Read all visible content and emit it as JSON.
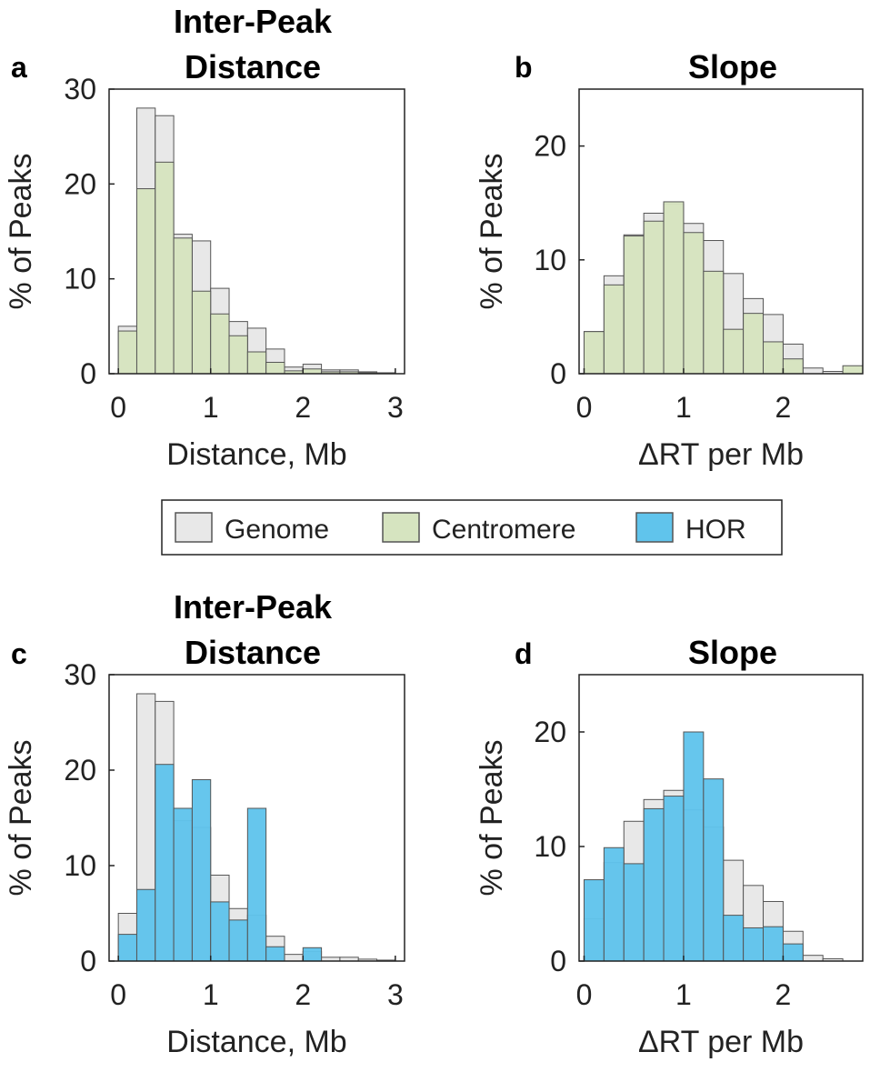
{
  "colors": {
    "genome": "#e8e8e8",
    "centromere": "#d6e4c0",
    "hor": "#60c4ec",
    "edge": "#555555",
    "axis": "#222222"
  },
  "legend": {
    "items": [
      {
        "key": "genome",
        "label": "Genome"
      },
      {
        "key": "centromere",
        "label": "Centromere"
      },
      {
        "key": "hor",
        "label": "HOR"
      }
    ]
  },
  "chart_data": [
    {
      "id": "a",
      "panel_label": "a",
      "type": "bar",
      "title": [
        "Inter-Peak",
        "Distance"
      ],
      "xlabel": "Distance, Mb",
      "ylabel": "% of Peaks",
      "xlim": [
        -0.1,
        3.1
      ],
      "ylim": [
        0,
        30
      ],
      "xticks": [
        0,
        1,
        2,
        3
      ],
      "yticks": [
        0,
        10,
        20,
        30
      ],
      "bin_width": 0.2,
      "bin_starts": [
        0.0,
        0.2,
        0.4,
        0.6,
        0.8,
        1.0,
        1.2,
        1.4,
        1.6,
        1.8,
        2.0,
        2.2,
        2.4,
        2.6,
        2.8
      ],
      "series": [
        {
          "name": "Genome",
          "key": "genome",
          "values": [
            5.0,
            28.0,
            27.2,
            14.7,
            14.0,
            9.0,
            5.5,
            4.8,
            2.6,
            0.7,
            1.0,
            0.4,
            0.4,
            0.2,
            0.1
          ]
        },
        {
          "name": "Centromere",
          "key": "centromere",
          "values": [
            4.5,
            19.5,
            22.3,
            14.3,
            8.7,
            6.3,
            4.0,
            2.3,
            1.2,
            0.3,
            0.5,
            0.2,
            0.2,
            0.1,
            0.0
          ]
        }
      ]
    },
    {
      "id": "b",
      "panel_label": "b",
      "type": "bar",
      "title": [
        "Slope"
      ],
      "xlabel": "ΔRT per Mb",
      "ylabel": "% of Peaks",
      "xlim": [
        -0.05,
        2.8
      ],
      "ylim": [
        0,
        25
      ],
      "xticks": [
        0,
        1,
        2
      ],
      "yticks": [
        0,
        10,
        20
      ],
      "bin_width": 0.2,
      "bin_starts": [
        0.0,
        0.2,
        0.4,
        0.6,
        0.8,
        1.0,
        1.2,
        1.4,
        1.6,
        1.8,
        2.0,
        2.2,
        2.4,
        2.6
      ],
      "series": [
        {
          "name": "Genome",
          "key": "genome",
          "values": [
            3.7,
            8.6,
            12.2,
            14.1,
            14.9,
            13.2,
            11.7,
            8.8,
            6.6,
            5.2,
            2.6,
            0.5,
            0.2,
            0.0
          ]
        },
        {
          "name": "Centromere",
          "key": "centromere",
          "values": [
            3.7,
            7.8,
            12.1,
            13.4,
            15.1,
            12.4,
            9.0,
            3.9,
            5.3,
            2.8,
            1.3,
            0.0,
            0.0,
            0.7
          ]
        }
      ]
    },
    {
      "id": "c",
      "panel_label": "c",
      "type": "bar",
      "title": [
        "Inter-Peak",
        "Distance"
      ],
      "xlabel": "Distance, Mb",
      "ylabel": "% of Peaks",
      "xlim": [
        -0.1,
        3.1
      ],
      "ylim": [
        0,
        30
      ],
      "xticks": [
        0,
        1,
        2,
        3
      ],
      "yticks": [
        0,
        10,
        20,
        30
      ],
      "bin_width": 0.2,
      "bin_starts": [
        0.0,
        0.2,
        0.4,
        0.6,
        0.8,
        1.0,
        1.2,
        1.4,
        1.6,
        1.8,
        2.0,
        2.2,
        2.4,
        2.6,
        2.8
      ],
      "series": [
        {
          "name": "Genome",
          "key": "genome",
          "values": [
            5.0,
            28.0,
            27.2,
            14.7,
            14.0,
            9.0,
            5.5,
            4.8,
            2.6,
            0.7,
            1.0,
            0.4,
            0.4,
            0.2,
            0.1
          ]
        },
        {
          "name": "HOR",
          "key": "hor",
          "values": [
            2.8,
            7.5,
            20.6,
            16.0,
            19.0,
            6.2,
            4.3,
            16.0,
            1.5,
            0.0,
            1.4,
            0.0,
            0.0,
            0.0,
            0.0
          ]
        }
      ]
    },
    {
      "id": "d",
      "panel_label": "d",
      "type": "bar",
      "title": [
        "Slope"
      ],
      "xlabel": "ΔRT per Mb",
      "ylabel": "% of Peaks",
      "xlim": [
        -0.05,
        2.8
      ],
      "ylim": [
        0,
        25
      ],
      "xticks": [
        0,
        1,
        2
      ],
      "yticks": [
        0,
        10,
        20
      ],
      "bin_width": 0.2,
      "bin_starts": [
        0.0,
        0.2,
        0.4,
        0.6,
        0.8,
        1.0,
        1.2,
        1.4,
        1.6,
        1.8,
        2.0,
        2.2,
        2.4,
        2.6
      ],
      "series": [
        {
          "name": "Genome",
          "key": "genome",
          "values": [
            3.7,
            8.6,
            12.2,
            14.1,
            14.9,
            13.2,
            11.7,
            8.8,
            6.6,
            5.2,
            2.6,
            0.5,
            0.2,
            0.0
          ]
        },
        {
          "name": "HOR",
          "key": "hor",
          "values": [
            7.1,
            9.9,
            8.5,
            13.3,
            14.4,
            20.0,
            15.9,
            4.0,
            2.9,
            3.0,
            1.5,
            0.0,
            0.0,
            0.0
          ]
        }
      ]
    }
  ]
}
